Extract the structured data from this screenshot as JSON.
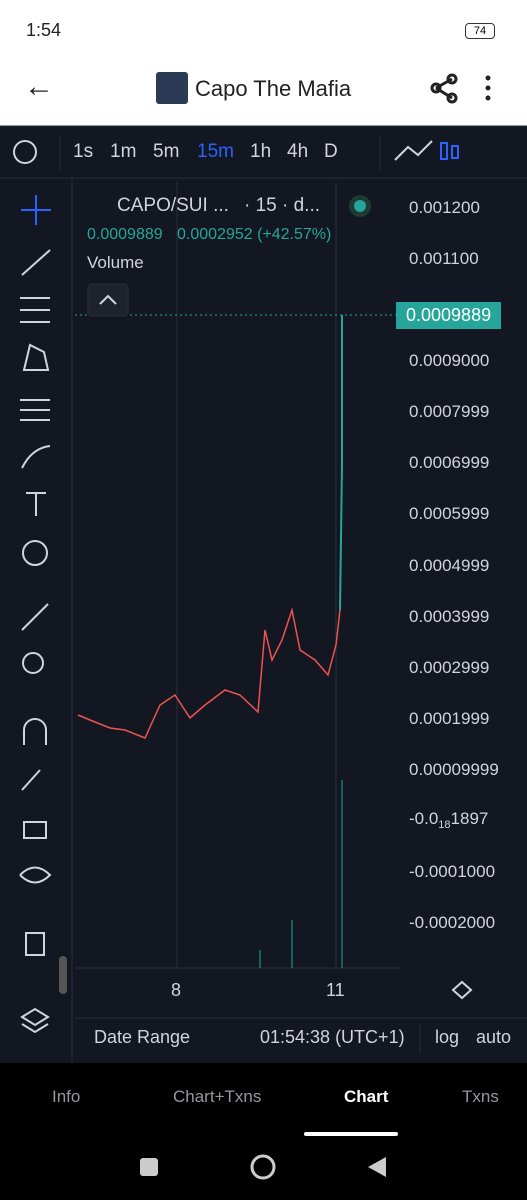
{
  "status_bar": {
    "time": "1:54",
    "battery": "74"
  },
  "header": {
    "title": "Capo The Mafia"
  },
  "timeframes": [
    "1s",
    "1m",
    "5m",
    "15m",
    "1h",
    "4h",
    "D"
  ],
  "active_timeframe": "15m",
  "legend": {
    "symbol": "CAPO/SUI ...",
    "interval": "· 15 · d...",
    "price": "0.0009889",
    "change": "0.0002952 (+42.57%)",
    "volume": "Volume"
  },
  "price_axis": [
    "0.001200",
    "0.001100",
    "0.0009000",
    "0.0007999",
    "0.0006999",
    "0.0005999",
    "0.0004999",
    "0.0003999",
    "0.0002999",
    "0.0001999",
    "0.00009999",
    {
      "main": "-0.0",
      "sub": "18",
      "tail": "1897"
    },
    "-0.0001000",
    "-0.0002000"
  ],
  "current_price_tag": "0.0009889",
  "time_axis": [
    "8",
    "11"
  ],
  "footer": {
    "date_range": "Date Range",
    "clock": "01:54:38 (UTC+1)",
    "log": "log",
    "auto": "auto"
  },
  "tabs": [
    "Info",
    "Chart+Txns",
    "Chart",
    "Txns"
  ],
  "active_tab": "Chart"
}
